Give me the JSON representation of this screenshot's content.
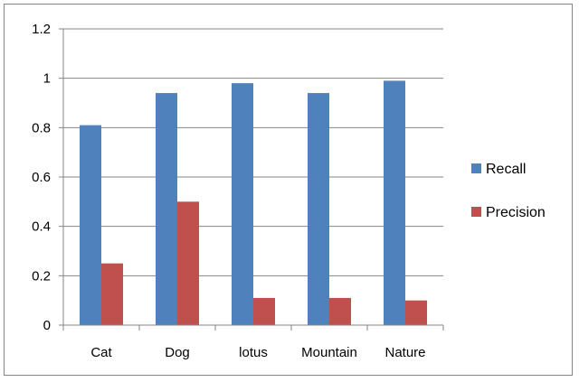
{
  "chart_data": {
    "type": "bar",
    "categories": [
      "Cat",
      "Dog",
      "lotus",
      "Mountain",
      "Nature"
    ],
    "series": [
      {
        "name": "Recall",
        "color": "#4F81BD",
        "values": [
          0.81,
          0.94,
          0.98,
          0.94,
          0.99
        ]
      },
      {
        "name": "Precision",
        "color": "#C0504D",
        "values": [
          0.25,
          0.5,
          0.11,
          0.11,
          0.1
        ]
      }
    ],
    "yticks": [
      "0",
      "0.2",
      "0.4",
      "0.6",
      "0.8",
      "1",
      "1.2"
    ],
    "ylim": [
      0,
      1.2
    ],
    "grid": true,
    "legend_position": "right",
    "title": "",
    "xlabel": "",
    "ylabel": ""
  }
}
